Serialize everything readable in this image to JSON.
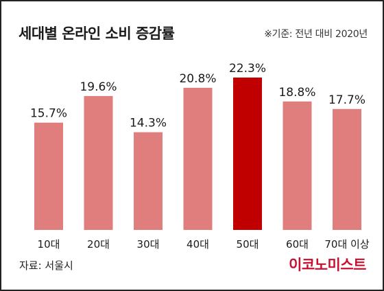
{
  "header": {
    "title": "세대별 온라인 소비 증감률",
    "note": "※기준: 전년 대비 2020년"
  },
  "footer": {
    "source": "자료: 서울시",
    "brand": "이코노미스트"
  },
  "colors": {
    "bar": "#e07e7e",
    "highlight": "#c00000",
    "text": "#1a1a1a",
    "brand": "#c8102e"
  },
  "chart_data": {
    "type": "bar",
    "categories": [
      "10대",
      "20대",
      "30대",
      "40대",
      "50대",
      "60대",
      "70대 이상"
    ],
    "values": [
      15.7,
      19.6,
      14.3,
      20.8,
      22.3,
      18.8,
      17.7
    ],
    "value_labels": [
      "15.7%",
      "19.6%",
      "14.3%",
      "20.8%",
      "22.3%",
      "18.8%",
      "17.7%"
    ],
    "highlight_index": 4,
    "ylim": [
      0,
      22.3
    ],
    "title": "세대별 온라인 소비 증감률",
    "xlabel": "",
    "ylabel": "",
    "grid": false,
    "legend": "none"
  }
}
